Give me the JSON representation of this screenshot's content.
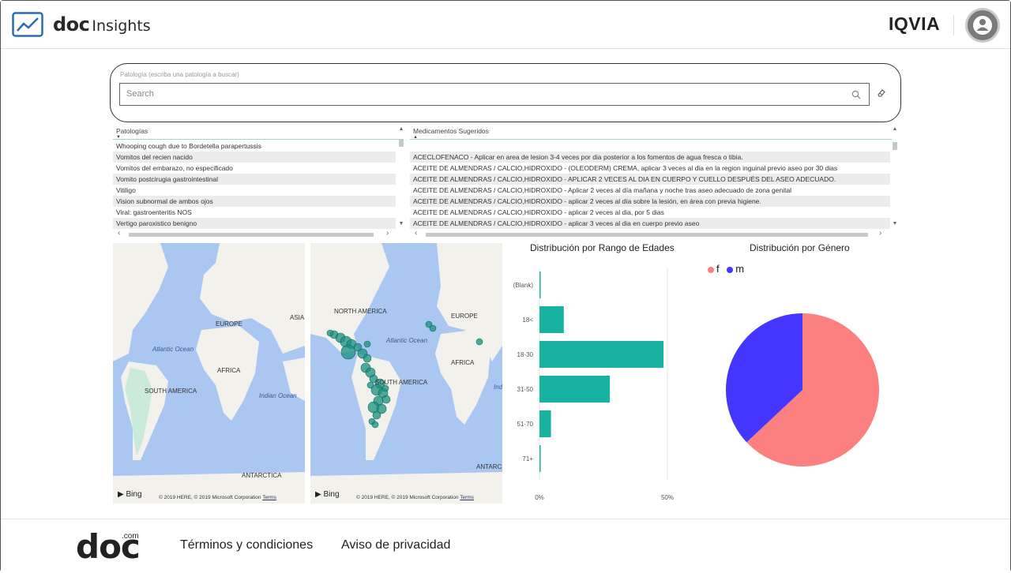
{
  "header": {
    "brand_doc": "doc",
    "brand_insights": "Insights",
    "partner": "IQVIA"
  },
  "search": {
    "label": "Patología (escriba una patología a buscar)",
    "placeholder": "Search",
    "value": ""
  },
  "pathologies": {
    "header": "Patologías",
    "rows": [
      "Whooping cough due to Bordetella parapertussis",
      "Vomitos del recien nacido",
      "Vomitos del embarazo, no especificado",
      "Vomito postcirugia gastrointestinal",
      "Vitiligo",
      "Vision subnormal de ambos ojos",
      "Viral: gastroenteritis NOS",
      "Vertigo paroxistico benigno"
    ]
  },
  "medicines": {
    "header": "Medicamentos Sugeridos",
    "rows": [
      "ACECLOFENACO - Aplicar en area de lesion 3-4 veces por dia posterior a los fomentos de agua fresca o tibia.",
      "ACEITE DE ALMENDRAS / CALCIO,HIDROXIDO - (OLEODERM) CREMA, aplicar 3 veces al dia en la region inguinal previo aseo por 30 dias",
      "ACEITE DE ALMENDRAS / CALCIO,HIDROXIDO - APLICAR 2 VECES AL DIA EN CUERPO Y CUELLO DESPUÉS DEL ASEO ADECUADO.",
      "ACEITE DE ALMENDRAS / CALCIO,HIDROXIDO - Aplicar 2 veces al día mañana y noche tras aseo adecuado de zona genital",
      "ACEITE DE ALMENDRAS / CALCIO,HIDROXIDO - aplicar 2 veces al día sobre la lesión, en área con previa higiene.",
      "ACEITE DE ALMENDRAS / CALCIO,HIDROXIDO - aplicar 2 veces al dia, por 5 dias",
      "ACEITE DE ALMENDRAS / CALCIO,HIDROXIDO - aplicar 3 veces al dia en cuerpo previo aseo"
    ]
  },
  "map1": {
    "labels": {
      "europe": "EUROPE",
      "asia": "ASIA",
      "africa": "AFRICA",
      "south_america": "SOUTH AMERICA",
      "antarctica": "ANTARCTICA"
    },
    "oceans": {
      "atlantic": "Atlantic Ocean",
      "indian": "Indian Ocean"
    },
    "bing": "Bing",
    "copyright": "© 2019 HERE, © 2019 Microsoft Corporation",
    "terms": "Terms"
  },
  "map2": {
    "labels": {
      "north_america": "NORTH AMERICA",
      "europe": "EUROPE",
      "africa": "AFRICA",
      "south_america": "SOUTH AMERICA",
      "antarctica": "ANTARC"
    },
    "oceans": {
      "atlantic": "Atlantic Ocean",
      "indian": "Ind"
    },
    "bing": "Bing",
    "copyright": "© 2019 HERE, © 2019 Microsoft Corporation",
    "terms": "Terms"
  },
  "chart_data": [
    {
      "type": "bar",
      "orientation": "horizontal",
      "title": "Distribución por Rango de Edades",
      "categories": [
        "(Blank)",
        "18<",
        "18-30",
        "31-50",
        "51-70",
        "71+"
      ],
      "values": [
        0.3,
        9.5,
        48.5,
        27.5,
        4.5,
        0.3
      ],
      "x_ticks": [
        "0%",
        "50%"
      ],
      "xlim": [
        0,
        50
      ],
      "unit": "%",
      "color": "#17b2a0"
    },
    {
      "type": "pie",
      "title": "Distribución por Género",
      "categories": [
        "f",
        "m"
      ],
      "values": [
        63,
        37
      ],
      "colors": [
        "#fd8080",
        "#4436ff"
      ],
      "legend_position": "top-left"
    }
  ],
  "footer": {
    "brand": "doc",
    "brand_suffix": ".com",
    "links": [
      "Términos y condiciones",
      "Aviso de privacidad"
    ]
  },
  "colors": {
    "accent": "#17b2a0",
    "female": "#fd8080",
    "male": "#4436ff",
    "ocean": "#aac7f2",
    "land": "#f2f1ec"
  }
}
